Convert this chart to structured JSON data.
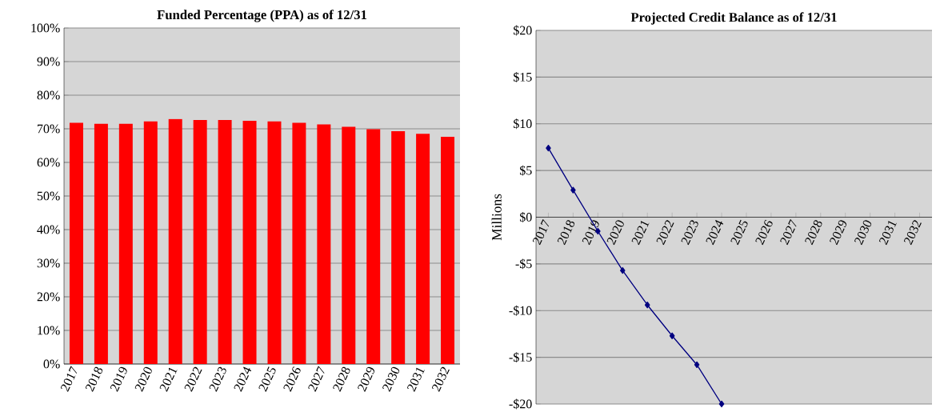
{
  "chart_data": [
    {
      "type": "bar",
      "title": "Funded Percentage (PPA) as of 12/31",
      "categories": [
        "2017",
        "2018",
        "2019",
        "2020",
        "2021",
        "2022",
        "2023",
        "2024",
        "2025",
        "2026",
        "2027",
        "2028",
        "2029",
        "2030",
        "2031",
        "2032"
      ],
      "values": [
        71.8,
        71.5,
        71.5,
        72.2,
        72.9,
        72.6,
        72.6,
        72.4,
        72.2,
        71.8,
        71.3,
        70.6,
        69.9,
        69.3,
        68.5,
        67.6
      ],
      "color": "#ff0000",
      "ylim": [
        0,
        100
      ],
      "yticks": [
        {
          "value": 0,
          "label": "0%"
        },
        {
          "value": 10,
          "label": "10%"
        },
        {
          "value": 20,
          "label": "20%"
        },
        {
          "value": 30,
          "label": "30%"
        },
        {
          "value": 40,
          "label": "40%"
        },
        {
          "value": 50,
          "label": "50%"
        },
        {
          "value": 60,
          "label": "60%"
        },
        {
          "value": 70,
          "label": "70%"
        },
        {
          "value": 80,
          "label": "80%"
        },
        {
          "value": 90,
          "label": "90%"
        },
        {
          "value": 100,
          "label": "100%"
        }
      ],
      "grid": "y"
    },
    {
      "type": "line",
      "title": "Projected Credit Balance as of 12/31",
      "ylabel": "Millions",
      "categories": [
        "2017",
        "2018",
        "2019",
        "2020",
        "2021",
        "2022",
        "2023",
        "2024",
        "2025",
        "2026",
        "2027",
        "2028",
        "2029",
        "2030",
        "2031",
        "2032"
      ],
      "values": [
        7.4,
        2.9,
        -1.5,
        -5.7,
        -9.4,
        -12.7,
        -15.8,
        -20.0,
        null,
        null,
        null,
        null,
        null,
        null,
        null,
        null
      ],
      "color": "#000080",
      "marker": "diamond",
      "ylim": [
        -20,
        20
      ],
      "yticks": [
        {
          "value": -20,
          "label": "-$20"
        },
        {
          "value": -15,
          "label": "-$15"
        },
        {
          "value": -10,
          "label": "-$10"
        },
        {
          "value": -5,
          "label": "-$5"
        },
        {
          "value": 0,
          "label": "$0"
        },
        {
          "value": 5,
          "label": "$5"
        },
        {
          "value": 10,
          "label": "$10"
        },
        {
          "value": 15,
          "label": "$15"
        },
        {
          "value": 20,
          "label": "$20"
        }
      ],
      "grid": "y"
    }
  ]
}
